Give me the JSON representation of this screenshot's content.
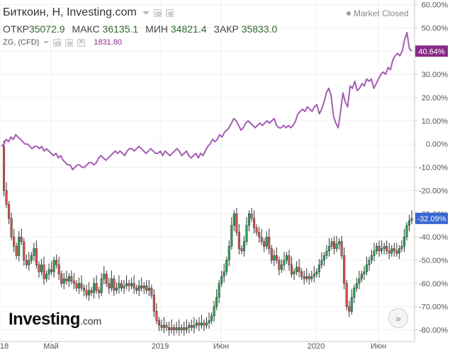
{
  "header": {
    "title": "Биткоин, Н, Investing.com",
    "ohlc": [
      {
        "label": "ОТКР",
        "value": "35072.9"
      },
      {
        "label": "МАКС",
        "value": "36135.1"
      },
      {
        "label": "МИН",
        "value": "34821.4"
      },
      {
        "label": "ЗАКР",
        "value": "35833.0"
      }
    ],
    "compare_symbol": "ZG, (CFD)",
    "compare_value": "1831.80",
    "status": "Market Closed"
  },
  "brand": {
    "name": "Investing",
    "suffix": ".com"
  },
  "scroll_button": "»",
  "chart_data": {
    "type": "line",
    "y_unit": "%",
    "ylim": [
      -85,
      62
    ],
    "y_ticks": [
      "60.00%",
      "50.00%",
      "40.00%",
      "30.00%",
      "20.00%",
      "10.00%",
      "0.00%",
      "-10.00%",
      "-20.00%",
      "-30.00%",
      "-40.00%",
      "-50.00%",
      "-60.00%",
      "-70.00%",
      "-80.00%"
    ],
    "x_ticks": [
      "18",
      "Май",
      "2019",
      "Июн",
      "2020",
      "Июн"
    ],
    "series": [
      {
        "name": "ZG, (CFD)",
        "color": "#a55db3",
        "last_label": "40.64%",
        "values": [
          -1,
          0,
          2,
          1,
          3,
          2,
          4,
          3,
          2,
          1,
          0,
          0,
          -1,
          -2,
          -1,
          -1,
          -2,
          -1,
          -3,
          -2,
          -3,
          -4,
          -5,
          -4,
          -6,
          -5,
          -7,
          -8,
          -9,
          -9,
          -11,
          -10,
          -9,
          -9,
          -10,
          -10,
          -9,
          -8,
          -8,
          -9,
          -8,
          -6,
          -5,
          -6,
          -7,
          -6,
          -5,
          -4,
          -3,
          -4,
          -3,
          -4,
          -5,
          -3,
          -2,
          -2,
          -3,
          -2,
          -1,
          -2,
          -3,
          -4,
          -3,
          -2,
          -3,
          -4,
          -4,
          -3,
          -5,
          -3,
          -4,
          -5,
          -4,
          -3,
          -2,
          -3,
          -5,
          -4,
          -3,
          -5,
          -6,
          -5,
          -4,
          -6,
          -4,
          -5,
          -3,
          -1,
          0,
          2,
          1,
          2,
          4,
          3,
          5,
          6,
          7,
          9,
          11,
          10,
          8,
          6,
          7,
          9,
          10,
          9,
          8,
          7,
          8,
          9,
          8,
          9,
          10,
          9,
          10,
          11,
          8,
          7,
          7,
          8,
          7,
          8,
          7,
          8,
          10,
          13,
          14,
          15,
          14,
          16,
          15,
          14,
          16,
          17,
          13,
          15,
          18,
          22,
          24,
          21,
          12,
          9,
          7,
          14,
          22,
          18,
          16,
          25,
          24,
          27,
          23,
          24,
          26,
          25,
          28,
          27,
          28,
          24,
          26,
          28,
          30,
          31,
          30,
          33,
          32,
          36,
          38,
          39,
          38,
          40,
          45,
          48,
          41,
          40
        ]
      },
      {
        "name": "Биткоин",
        "color": "#26a65b",
        "last_label": "-32.09%",
        "values": [
          -1,
          -20,
          -26,
          -32,
          -40,
          -44,
          -48,
          -40,
          -42,
          -50,
          -52,
          -50,
          -48,
          -45,
          -52,
          -55,
          -52,
          -58,
          -56,
          -54,
          -55,
          -50,
          -52,
          -56,
          -60,
          -58,
          -59,
          -57,
          -59,
          -60,
          -62,
          -60,
          -62,
          -63,
          -65,
          -63,
          -64,
          -60,
          -63,
          -64,
          -58,
          -56,
          -60,
          -62,
          -58,
          -63,
          -62,
          -60,
          -62,
          -61,
          -60,
          -61,
          -60,
          -62,
          -63,
          -61,
          -62,
          -61,
          -63,
          -62,
          -65,
          -72,
          -76,
          -78,
          -79,
          -78,
          -79,
          -80,
          -79,
          -80,
          -79,
          -80,
          -79,
          -80,
          -79,
          -78,
          -79,
          -78,
          -77,
          -78,
          -77,
          -78,
          -77,
          -76,
          -74,
          -70,
          -66,
          -60,
          -57,
          -55,
          -50,
          -44,
          -35,
          -30,
          -38,
          -45,
          -46,
          -42,
          -35,
          -30,
          -32,
          -36,
          -38,
          -40,
          -42,
          -44,
          -40,
          -45,
          -50,
          -48,
          -50,
          -54,
          -52,
          -50,
          -48,
          -52,
          -56,
          -55,
          -53,
          -55,
          -57,
          -58,
          -57,
          -58,
          -57,
          -56,
          -55,
          -52,
          -50,
          -48,
          -46,
          -44,
          -42,
          -45,
          -43,
          -42,
          -48,
          -60,
          -70,
          -72,
          -66,
          -62,
          -60,
          -58,
          -56,
          -55,
          -52,
          -50,
          -48,
          -46,
          -44,
          -46,
          -45,
          -44,
          -46,
          -47,
          -45,
          -46,
          -47,
          -45,
          -44,
          -40,
          -35,
          -33,
          -32
        ]
      }
    ]
  }
}
